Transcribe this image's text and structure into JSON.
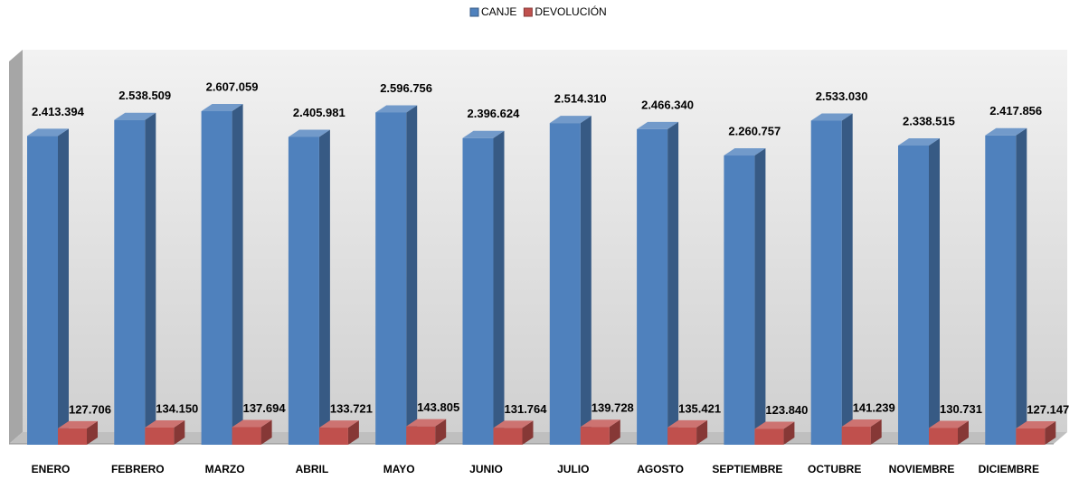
{
  "chart_data": {
    "type": "bar3d",
    "categories": [
      "ENERO",
      "FEBRERO",
      "MARZO",
      "ABRIL",
      "MAYO",
      "JUNIO",
      "JULIO",
      "AGOSTO",
      "SEPTIEMBRE",
      "OCTUBRE",
      "NOVIEMBRE",
      "DICIEMBRE"
    ],
    "series": [
      {
        "name": "CANJE",
        "color": "#4f81bd",
        "values": [
          2413394,
          2538509,
          2607059,
          2405981,
          2596756,
          2396624,
          2514310,
          2466340,
          2260757,
          2533030,
          2338515,
          2417856
        ],
        "value_labels": [
          "2.413.394",
          "2.538.509",
          "2.607.059",
          "2.405.981",
          "2.596.756",
          "2.396.624",
          "2.514.310",
          "2.466.340",
          "2.260.757",
          "2.533.030",
          "2.338.515",
          "2.417.856"
        ]
      },
      {
        "name": "DEVOLUCIÓN",
        "color": "#c0504d",
        "values": [
          127706,
          134150,
          137694,
          133721,
          143805,
          131764,
          139728,
          135421,
          123840,
          141239,
          130731,
          127147
        ],
        "value_labels": [
          "127.706",
          "134.150",
          "137.694",
          "133.721",
          "143.805",
          "131.764",
          "139.728",
          "135.421",
          "123.840",
          "141.239",
          "130.731",
          "127.147"
        ]
      }
    ],
    "legend": "top"
  }
}
